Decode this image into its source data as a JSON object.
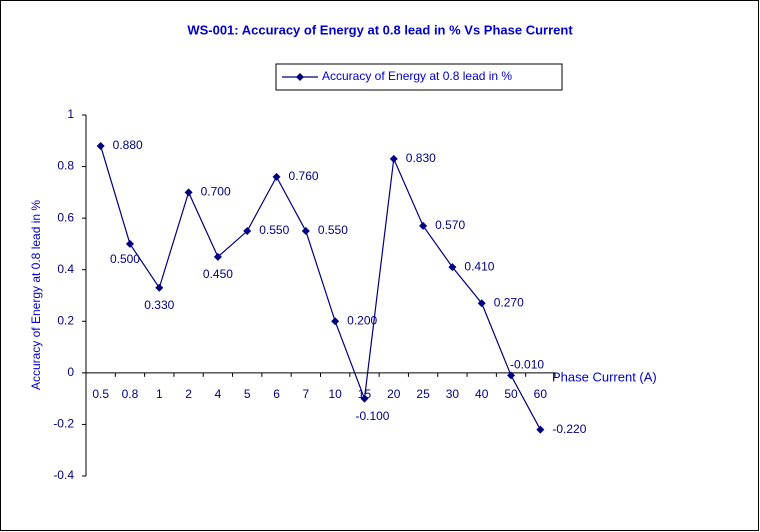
{
  "chart_data": {
    "type": "line",
    "title": "WS-001: Accuracy of Energy at 0.8 lead in % Vs Phase Current",
    "x_label": "Phase Current (A)",
    "y_label": "Accuracy of Energy at 0.8 lead in %",
    "categories": [
      "0.5",
      "0.8",
      "1",
      "2",
      "4",
      "5",
      "6",
      "7",
      "10",
      "15",
      "20",
      "25",
      "30",
      "40",
      "50",
      "60"
    ],
    "series": [
      {
        "name": "Accuracy of Energy at 0.8 lead in %",
        "color": "#000080",
        "values": [
          0.88,
          0.5,
          0.33,
          0.7,
          0.45,
          0.55,
          0.76,
          0.55,
          0.2,
          -0.1,
          0.83,
          0.57,
          0.41,
          0.27,
          -0.01,
          -0.22
        ],
        "value_labels": [
          "0.880",
          "0.500",
          "0.330",
          "0.700",
          "0.450",
          "0.550",
          "0.760",
          "0.550",
          "0.200",
          "-0.100",
          "0.830",
          "0.570",
          "0.410",
          "0.270",
          "-0.010",
          "-0.220"
        ]
      }
    ],
    "ylim": [
      -0.4,
      1
    ],
    "yticks": [
      1,
      0.8,
      0.6,
      0.4,
      0.2,
      0,
      -0.2,
      -0.4
    ],
    "legend": "top"
  }
}
